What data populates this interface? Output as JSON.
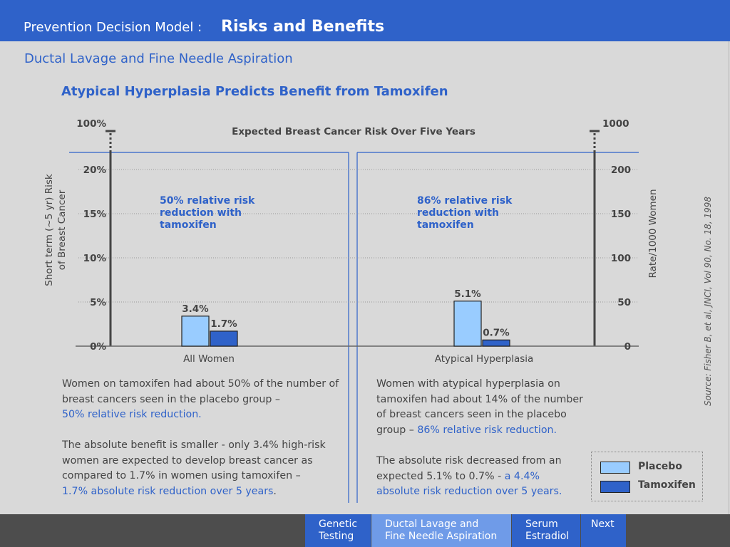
{
  "header": {
    "prefix": "Prevention Decision Model :",
    "title": "Risks and Benefits"
  },
  "subtitle": "Ductal Lavage and Fine Needle Aspiration",
  "chart_title": "Atypical Hyperplasia Predicts Benefit from Tamoxifen",
  "chart_data": {
    "type": "bar",
    "title": "Expected Breast Cancer Risk Over Five Years",
    "categories": [
      "All Women",
      "Atypical Hyperplasia"
    ],
    "series": [
      {
        "name": "Placebo",
        "values": [
          3.4,
          5.1
        ],
        "labels": [
          "3.4%",
          "5.1%"
        ]
      },
      {
        "name": "Tamoxifen",
        "values": [
          1.7,
          0.7
        ],
        "labels": [
          "1.7%",
          "0.7%"
        ]
      }
    ],
    "ylabel": "Short term (~5 yr) Risk of Breast Cancer",
    "ylabel_lines": [
      "Short term (~5 yr) Risk",
      "of Breast Cancer"
    ],
    "y2label": "Rate/1000 Women",
    "ylim": [
      0,
      20
    ],
    "yticks_left": [
      "0%",
      "5%",
      "10%",
      "15%",
      "20%"
    ],
    "yticks_right": [
      "0",
      "50",
      "100",
      "150",
      "200"
    ],
    "axis_break_top_left": "100%",
    "axis_break_top_right": "1000",
    "annotations": [
      "50% relative risk reduction with tamoxifen",
      "86% relative risk reduction with tamoxifen"
    ],
    "annotation_lines": [
      [
        "50% relative risk",
        "reduction with",
        "tamoxifen"
      ],
      [
        "86% relative risk",
        "reduction with",
        "tamoxifen"
      ]
    ],
    "colors": {
      "Placebo": "#99ccff",
      "Tamoxifen": "#2f62c9"
    },
    "grid": true,
    "legend": "bottom-right"
  },
  "text_left": {
    "p1": "Women on tamoxifen had about 50% of the number of breast cancers seen in the placebo group –",
    "p1_highlight": "50% relative risk reduction.",
    "p2": "The absolute benefit is smaller - only 3.4% high-risk women are expected to develop breast cancer as compared to 1.7% in women using tamoxifen –",
    "p2_highlight": "1.7% absolute risk reduction over 5 years",
    "p2_end": "."
  },
  "text_right": {
    "p1": "Women with atypical hyperplasia on tamoxifen had about 14% of the number of breast cancers seen in the placebo group –",
    "p1_highlight": "86% relative risk reduction.",
    "p2": "The absolute risk decreased from an expected 5.1% to 0.7% -",
    "p2_highlight": "a 4.4% absolute risk reduction over 5 years."
  },
  "source": "Source: Fisher B, et al, JNCI,   Vol 90, No. 18, 1998",
  "legend": {
    "placebo": "Placebo",
    "tamoxifen": "Tamoxifen"
  },
  "nav": {
    "genetic": "Genetic\nTesting",
    "ductal": "Ductal Lavage and\nFine Needle Aspiration",
    "serum": "Serum\nEstradiol",
    "next": "Next"
  }
}
